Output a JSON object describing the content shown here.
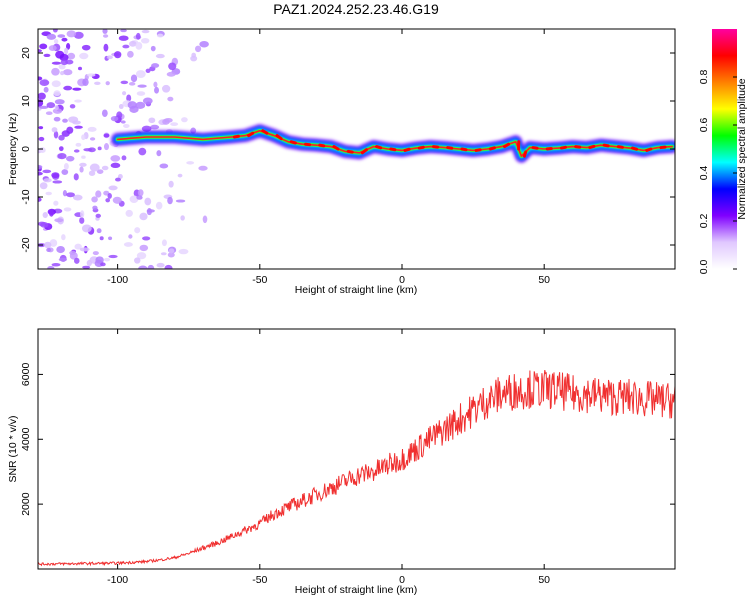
{
  "title": "PAZ1.2024.252.23.46.G19",
  "chart_data": [
    {
      "type": "heatmap",
      "xlabel": "Height of straight line (km)",
      "ylabel": "Frequency (Hz)",
      "xlim": [
        -128,
        96
      ],
      "ylim": [
        -25,
        25
      ],
      "xticks": [
        -100,
        -50,
        0,
        50
      ],
      "yticks": [
        -20,
        -10,
        0,
        10,
        20
      ],
      "xtick_labels": [
        "-100",
        "-50",
        "0",
        "50"
      ],
      "ytick_labels": [
        "-20",
        "-10",
        "0",
        "10",
        "20"
      ],
      "colorbar": {
        "label": "Normalized spectral amplitude",
        "range": [
          0,
          1
        ],
        "ticks": [
          0.0,
          0.2,
          0.4,
          0.6,
          0.8
        ],
        "tick_labels": [
          "0.0",
          "0.2",
          "0.4",
          "0.6",
          "0.8"
        ],
        "colors": [
          "#ffffff",
          "#e0c8ff",
          "#8000ff",
          "#0000ff",
          "#00ffff",
          "#00ff00",
          "#ffff00",
          "#ff8000",
          "#ff0000",
          "#ff00a0"
        ]
      },
      "ridge": {
        "x": [
          -100,
          -90,
          -80,
          -70,
          -60,
          -55,
          -50,
          -45,
          -40,
          -35,
          -30,
          -25,
          -20,
          -15,
          -10,
          -5,
          0,
          5,
          10,
          15,
          20,
          25,
          30,
          35,
          40,
          42,
          45,
          50,
          55,
          60,
          65,
          70,
          75,
          80,
          85,
          90,
          95
        ],
        "frequency": [
          2,
          2.5,
          2.5,
          2,
          2.5,
          2.8,
          3.8,
          2.8,
          1.5,
          1,
          0.8,
          0.5,
          -0.5,
          -0.8,
          0.5,
          0,
          -0.3,
          0.2,
          0.5,
          0.3,
          0,
          -0.3,
          0,
          0.5,
          1.5,
          -1.5,
          0.3,
          0,
          0.2,
          0.5,
          0.3,
          0.8,
          0.5,
          0.2,
          -0.3,
          0.3,
          0.5
        ]
      },
      "noise_region": [
        -128,
        -60
      ]
    },
    {
      "type": "line",
      "xlabel": "Height of straight line (km)",
      "ylabel": "SNR (10 * v/v)",
      "xlim": [
        -128,
        96
      ],
      "ylim": [
        0,
        7400
      ],
      "xticks": [
        -100,
        -50,
        0,
        50
      ],
      "yticks": [
        2000,
        4000,
        6000
      ],
      "xtick_labels": [
        "-100",
        "-50",
        "0",
        "50"
      ],
      "ytick_labels": [
        "2000",
        "4000",
        "6000"
      ],
      "color": "#f03030",
      "series": [
        {
          "x": [
            -128,
            -120,
            -110,
            -100,
            -90,
            -85,
            -80,
            -75,
            -70,
            -65,
            -60,
            -55,
            -50,
            -45,
            -40,
            -35,
            -30,
            -25,
            -20,
            -15,
            -10,
            -5,
            0,
            5,
            10,
            15,
            20,
            25,
            30,
            35,
            40,
            45,
            50,
            55,
            60,
            65,
            70,
            75,
            80,
            85,
            90,
            96
          ],
          "values": [
            150,
            160,
            170,
            180,
            230,
            280,
            350,
            480,
            650,
            800,
            1000,
            1200,
            1400,
            1700,
            1900,
            2100,
            2300,
            2500,
            2700,
            2900,
            3000,
            3200,
            3400,
            3700,
            4000,
            4300,
            4600,
            4900,
            5200,
            5400,
            5500,
            5550,
            5550,
            5500,
            5400,
            5400,
            5350,
            5300,
            5300,
            5250,
            5200,
            5200
          ]
        }
      ]
    }
  ]
}
